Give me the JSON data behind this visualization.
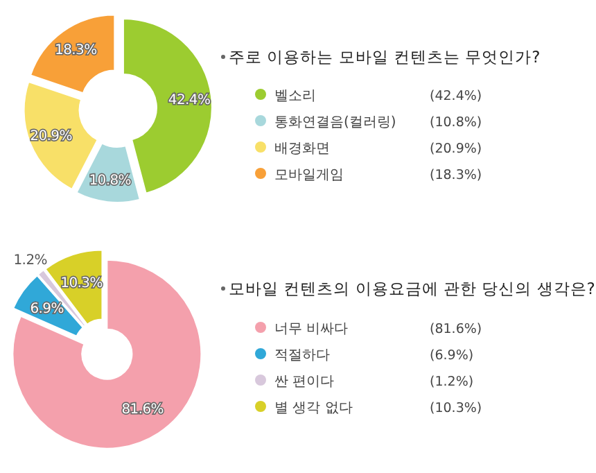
{
  "chart_data": [
    {
      "type": "donut",
      "title": "주로 이용하는 모바일 컨텐츠는 무엇인가?",
      "categories": [
        "벨소리",
        "통화연결음(컬러링)",
        "배경화면",
        "모바일게임"
      ],
      "values": [
        42.4,
        10.8,
        20.9,
        18.3
      ],
      "colors": [
        "#9ccc30",
        "#a8d8dc",
        "#f8e068",
        "#f8a038"
      ],
      "value_labels": [
        "42.4%",
        "10.8%",
        "20.9%",
        "18.3%"
      ],
      "annotations": [
        "(42.4%)",
        "(10.8%)",
        "(20.9%)",
        "(18.3%)"
      ],
      "legend": "right"
    },
    {
      "type": "donut",
      "title": "모바일 컨텐츠의 이용요금에 관한 당신의 생각은?",
      "categories": [
        "너무 비싸다",
        "적절하다",
        "싼 편이다",
        "별 생각 없다"
      ],
      "values": [
        81.6,
        6.9,
        1.2,
        10.3
      ],
      "colors": [
        "#f4a0ac",
        "#30a8d8",
        "#d8c8dc",
        "#d8d028"
      ],
      "value_labels": [
        "81.6%",
        "6.9%",
        "1.2%",
        "10.3%"
      ],
      "annotations": [
        "(81.6%)",
        "(6.9%)",
        "(1.2%)",
        "(10.3%)"
      ],
      "legend": "right"
    }
  ]
}
